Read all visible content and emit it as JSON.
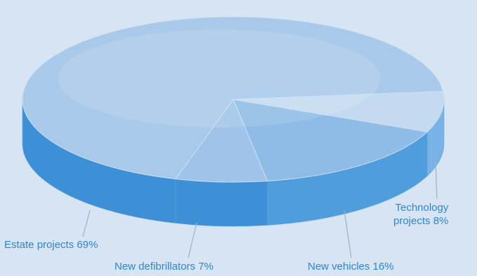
{
  "chart_data": {
    "type": "pie",
    "style": "3d",
    "title": "",
    "slices": [
      {
        "label": "Estate projects",
        "value": 69,
        "value_label": "69%"
      },
      {
        "label": "New defibrillators",
        "value": 7,
        "value_label": "7%"
      },
      {
        "label": "New vehicles",
        "value": 16,
        "value_label": "16%"
      },
      {
        "label": "Technology projects",
        "value": 8,
        "value_label": "8%"
      }
    ]
  },
  "labels": {
    "estate": "Estate projects 69%",
    "defib": "New defibrillators 7%",
    "vehicles": "New vehicles 16%",
    "tech_line1": "Technology",
    "tech_line2": "projects 8%"
  },
  "colors": {
    "background": "#d6e4f3",
    "top_face": "#a9c9ea",
    "side_face": "#3d8fd6",
    "edge_face": "#79b2e6",
    "label_text": "#2f86cf",
    "leader_line": "#9ab3ca"
  }
}
